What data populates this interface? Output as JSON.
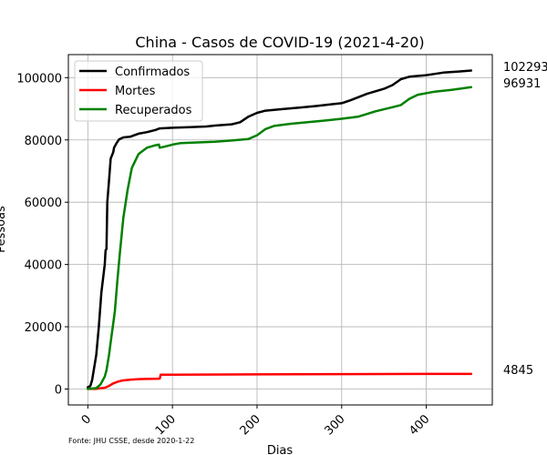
{
  "chart_data": {
    "type": "line",
    "title": "China - Casos de COVID-19 (2021-4-20)",
    "xlabel": "Dias",
    "ylabel": "Pessoas",
    "xlim": [
      -23,
      478
    ],
    "ylim": [
      -5114,
      107400
    ],
    "x_ticks": [
      0,
      100,
      200,
      300,
      400
    ],
    "y_ticks": [
      0,
      20000,
      40000,
      60000,
      80000,
      100000
    ],
    "grid": true,
    "legend_position": "top-left",
    "source_note": "Fonte: JHU CSSE, desde 2020-1-22",
    "end_labels": [
      "102293",
      "96931",
      "4845"
    ],
    "series": [
      {
        "name": "Confirmados",
        "color": "#000000",
        "points": [
          [
            0,
            548
          ],
          [
            3,
            1000
          ],
          [
            5,
            2800
          ],
          [
            7,
            6000
          ],
          [
            10,
            11000
          ],
          [
            13,
            20000
          ],
          [
            16,
            31000
          ],
          [
            20,
            40000
          ],
          [
            21,
            44500
          ],
          [
            22,
            45000
          ],
          [
            23,
            60000
          ],
          [
            25,
            67000
          ],
          [
            27,
            74000
          ],
          [
            30,
            76000
          ],
          [
            31,
            77500
          ],
          [
            34,
            79000
          ],
          [
            37,
            80200
          ],
          [
            42,
            80800
          ],
          [
            50,
            81000
          ],
          [
            55,
            81500
          ],
          [
            60,
            82000
          ],
          [
            70,
            82500
          ],
          [
            80,
            83200
          ],
          [
            85,
            83700
          ],
          [
            100,
            83900
          ],
          [
            120,
            84100
          ],
          [
            140,
            84300
          ],
          [
            150,
            84600
          ],
          [
            170,
            85000
          ],
          [
            180,
            85700
          ],
          [
            190,
            87500
          ],
          [
            200,
            88700
          ],
          [
            210,
            89400
          ],
          [
            230,
            89900
          ],
          [
            250,
            90400
          ],
          [
            270,
            90900
          ],
          [
            290,
            91500
          ],
          [
            300,
            91800
          ],
          [
            310,
            92700
          ],
          [
            330,
            94800
          ],
          [
            350,
            96400
          ],
          [
            360,
            97600
          ],
          [
            370,
            99500
          ],
          [
            380,
            100300
          ],
          [
            400,
            100800
          ],
          [
            410,
            101200
          ],
          [
            420,
            101600
          ],
          [
            440,
            102000
          ],
          [
            453,
            102293
          ]
        ]
      },
      {
        "name": "Mortes",
        "color": "#ff0000",
        "points": [
          [
            0,
            17
          ],
          [
            10,
            100
          ],
          [
            20,
            400
          ],
          [
            25,
            1000
          ],
          [
            30,
            1800
          ],
          [
            35,
            2300
          ],
          [
            40,
            2700
          ],
          [
            50,
            3000
          ],
          [
            60,
            3200
          ],
          [
            70,
            3250
          ],
          [
            80,
            3300
          ],
          [
            85,
            3340
          ],
          [
            86,
            4600
          ],
          [
            100,
            4632
          ],
          [
            200,
            4700
          ],
          [
            300,
            4800
          ],
          [
            400,
            4840
          ],
          [
            453,
            4845
          ]
        ]
      },
      {
        "name": "Recuperados",
        "color": "#008000",
        "points": [
          [
            0,
            28
          ],
          [
            10,
            300
          ],
          [
            15,
            1500
          ],
          [
            20,
            4000
          ],
          [
            22,
            6000
          ],
          [
            25,
            11000
          ],
          [
            28,
            17000
          ],
          [
            30,
            21000
          ],
          [
            32,
            25000
          ],
          [
            35,
            35000
          ],
          [
            38,
            44000
          ],
          [
            42,
            55000
          ],
          [
            47,
            64000
          ],
          [
            52,
            71000
          ],
          [
            60,
            75500
          ],
          [
            70,
            77500
          ],
          [
            80,
            78300
          ],
          [
            84,
            78500
          ],
          [
            85,
            77500
          ],
          [
            90,
            77800
          ],
          [
            100,
            78500
          ],
          [
            110,
            79000
          ],
          [
            130,
            79200
          ],
          [
            150,
            79400
          ],
          [
            170,
            79800
          ],
          [
            190,
            80300
          ],
          [
            200,
            81500
          ],
          [
            210,
            83500
          ],
          [
            220,
            84500
          ],
          [
            240,
            85200
          ],
          [
            260,
            85700
          ],
          [
            280,
            86200
          ],
          [
            300,
            86800
          ],
          [
            320,
            87500
          ],
          [
            340,
            89200
          ],
          [
            360,
            90500
          ],
          [
            370,
            91200
          ],
          [
            380,
            93200
          ],
          [
            390,
            94500
          ],
          [
            410,
            95500
          ],
          [
            430,
            96100
          ],
          [
            453,
            96931
          ]
        ]
      }
    ]
  }
}
